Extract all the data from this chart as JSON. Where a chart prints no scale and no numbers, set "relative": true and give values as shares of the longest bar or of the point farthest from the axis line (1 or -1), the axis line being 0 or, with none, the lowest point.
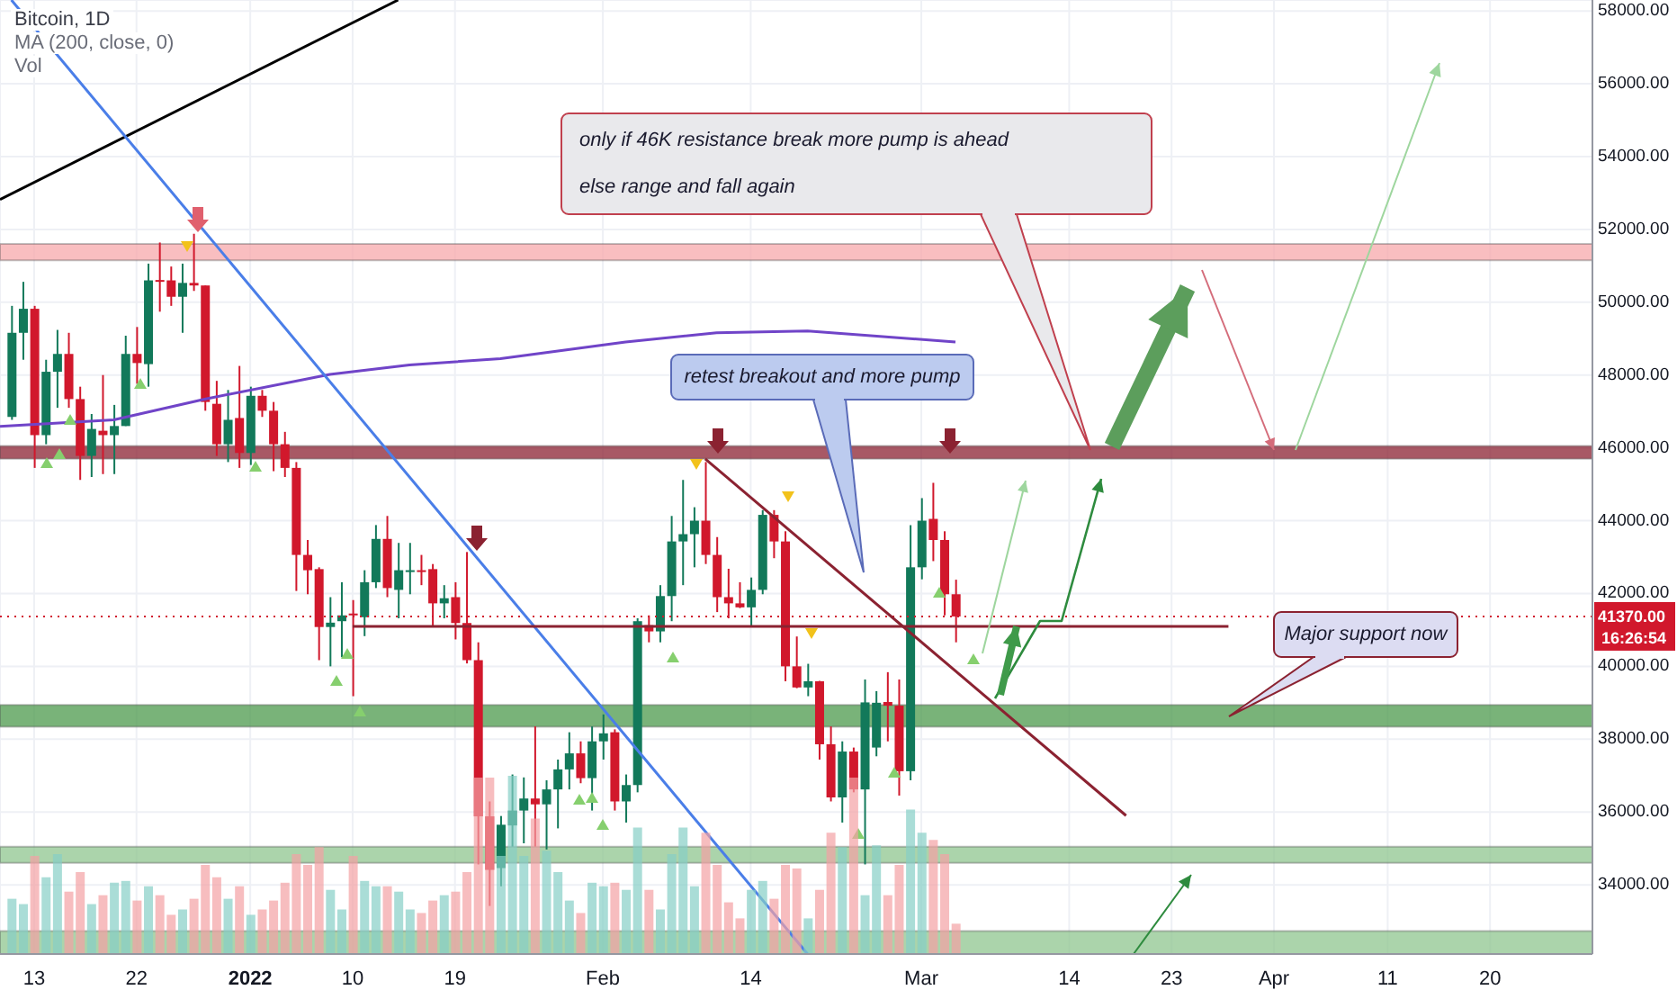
{
  "chart_data": [
    {
      "type": "candlestick",
      "title": "Bitcoin, 1D",
      "subtitle": "MA (200, close, 0)",
      "x": [
        "2021-12-11",
        "2021-12-12",
        "2021-12-13",
        "2021-12-14",
        "2021-12-15",
        "2021-12-16",
        "2021-12-17",
        "2021-12-18",
        "2021-12-19",
        "2021-12-20",
        "2021-12-21",
        "2021-12-22",
        "2021-12-23",
        "2021-12-24",
        "2021-12-25",
        "2021-12-26",
        "2021-12-27",
        "2021-12-28",
        "2021-12-29",
        "2021-12-30",
        "2021-12-31",
        "2022-01-01",
        "2022-01-02",
        "2022-01-03",
        "2022-01-04",
        "2022-01-05",
        "2022-01-06",
        "2022-01-07",
        "2022-01-08",
        "2022-01-09",
        "2022-01-10",
        "2022-01-11",
        "2022-01-12",
        "2022-01-13",
        "2022-01-14",
        "2022-01-15",
        "2022-01-16",
        "2022-01-17",
        "2022-01-18",
        "2022-01-19",
        "2022-01-20",
        "2022-01-21",
        "2022-01-22",
        "2022-01-23",
        "2022-01-24",
        "2022-01-25",
        "2022-01-26",
        "2022-01-27",
        "2022-01-28",
        "2022-01-29",
        "2022-01-30",
        "2022-01-31",
        "2022-02-01",
        "2022-02-02",
        "2022-02-03",
        "2022-02-04",
        "2022-02-05",
        "2022-02-06",
        "2022-02-07",
        "2022-02-08",
        "2022-02-09",
        "2022-02-10",
        "2022-02-11",
        "2022-02-12",
        "2022-02-13",
        "2022-02-14",
        "2022-02-15",
        "2022-02-16",
        "2022-02-17",
        "2022-02-18",
        "2022-02-19",
        "2022-02-20",
        "2022-02-21",
        "2022-02-22",
        "2022-02-23",
        "2022-02-24",
        "2022-02-25",
        "2022-02-26",
        "2022-02-27",
        "2022-02-28",
        "2022-03-01",
        "2022-03-02",
        "2022-03-03",
        "2022-03-04"
      ],
      "ohlc": [
        [
          46850,
          49900,
          46770,
          49160
        ],
        [
          49160,
          50560,
          48420,
          49820
        ],
        [
          49820,
          49900,
          45450,
          46350
        ],
        [
          46350,
          48420,
          46100,
          48090
        ],
        [
          48090,
          49240,
          47100,
          48580
        ],
        [
          48580,
          49160,
          47100,
          47340
        ],
        [
          47340,
          47680,
          45120,
          45780
        ],
        [
          45780,
          46930,
          45200,
          46520
        ],
        [
          46470,
          48000,
          45280,
          46350
        ],
        [
          46350,
          47180,
          45280,
          46600
        ],
        [
          46600,
          49080,
          46600,
          48580
        ],
        [
          48580,
          49320,
          47760,
          48330
        ],
        [
          48300,
          51060,
          47680,
          50600
        ],
        [
          50610,
          51640,
          49740,
          50560
        ],
        [
          50600,
          50980,
          49900,
          50150
        ],
        [
          50150,
          51060,
          49160,
          50530
        ],
        [
          50530,
          51880,
          50310,
          50460
        ],
        [
          50460,
          50460,
          47020,
          47260
        ],
        [
          47210,
          47840,
          45780,
          46100
        ],
        [
          46100,
          47590,
          45610,
          46770
        ],
        [
          46820,
          48250,
          45450,
          45860
        ],
        [
          45860,
          47680,
          45530,
          47430
        ],
        [
          47430,
          47590,
          46850,
          47020
        ],
        [
          47020,
          47260,
          45360,
          46100
        ],
        [
          46100,
          46440,
          45200,
          45450
        ],
        [
          45450,
          45610,
          42070,
          43060
        ],
        [
          43060,
          43470,
          41980,
          42640
        ],
        [
          42670,
          42720,
          40170,
          41080
        ],
        [
          41080,
          41900,
          40000,
          41200
        ],
        [
          41240,
          42310,
          40250,
          41400
        ],
        [
          41450,
          41820,
          39180,
          41420
        ],
        [
          41350,
          42640,
          40830,
          42310
        ],
        [
          42310,
          43880,
          42150,
          43500
        ],
        [
          43500,
          44130,
          41900,
          42150
        ],
        [
          42100,
          43390,
          41320,
          42640
        ],
        [
          42610,
          43390,
          41980,
          42640
        ],
        [
          42640,
          43060,
          42230,
          42610
        ],
        [
          42670,
          42810,
          41080,
          41730
        ],
        [
          41730,
          42230,
          41320,
          41870
        ],
        [
          41900,
          42310,
          40740,
          41190
        ],
        [
          41190,
          43140,
          40080,
          40170
        ],
        [
          40170,
          40660,
          34560,
          35880
        ],
        [
          35880,
          36290,
          33420,
          34410
        ],
        [
          34460,
          35890,
          33960,
          35650
        ],
        [
          35630,
          37030,
          35050,
          36040
        ],
        [
          36040,
          36950,
          35140,
          36370
        ],
        [
          36370,
          38350,
          35050,
          36210
        ],
        [
          36210,
          36870,
          34970,
          36620
        ],
        [
          36620,
          37440,
          35550,
          37170
        ],
        [
          37170,
          38190,
          36620,
          37610
        ],
        [
          37610,
          37940,
          36790,
          36930
        ],
        [
          36930,
          38350,
          36040,
          37940
        ],
        [
          37940,
          38680,
          37440,
          38160
        ],
        [
          38190,
          38270,
          36040,
          36290
        ],
        [
          36290,
          37030,
          35710,
          36740
        ],
        [
          36740,
          41320,
          36540,
          41240
        ],
        [
          41130,
          41400,
          40660,
          40960
        ],
        [
          40960,
          42230,
          40660,
          41930
        ],
        [
          41930,
          44130,
          41240,
          43430
        ],
        [
          43430,
          45120,
          42230,
          43630
        ],
        [
          43630,
          44370,
          42720,
          44000
        ],
        [
          44000,
          45610,
          42810,
          43060
        ],
        [
          43060,
          43550,
          41490,
          41900
        ],
        [
          41900,
          42680,
          41320,
          41730
        ],
        [
          41730,
          42310,
          41600,
          41620
        ],
        [
          41620,
          42440,
          41080,
          42100
        ],
        [
          42100,
          44290,
          41980,
          44160
        ],
        [
          44160,
          44290,
          42970,
          43430
        ],
        [
          43430,
          43710,
          39590,
          40000
        ],
        [
          40000,
          40820,
          39400,
          39420
        ],
        [
          39420,
          40070,
          39180,
          39590
        ],
        [
          39590,
          39600,
          37440,
          37860
        ],
        [
          37860,
          38350,
          36290,
          36400
        ],
        [
          36400,
          37940,
          35710,
          37660
        ],
        [
          37660,
          37770,
          36540,
          36620
        ],
        [
          36620,
          39640,
          34560,
          39010
        ],
        [
          37770,
          39320,
          37530,
          39000
        ],
        [
          39020,
          39840,
          37940,
          38920
        ],
        [
          38920,
          39640,
          36450,
          37120
        ],
        [
          37120,
          43880,
          36870,
          42720
        ],
        [
          42720,
          44620,
          42390,
          44000
        ],
        [
          44050,
          45040,
          42890,
          43470
        ],
        [
          43470,
          43710,
          41400,
          41980
        ],
        [
          41980,
          42380,
          40660,
          41370
        ]
      ],
      "xlim": [
        "2021-12-10",
        "2022-04-29"
      ],
      "xticks": [
        {
          "value": "2021-12-13",
          "label": "13"
        },
        {
          "value": "2021-12-22",
          "label": "22"
        },
        {
          "value": "2022-01-01",
          "label": "2022"
        },
        {
          "value": "2022-01-10",
          "label": "10"
        },
        {
          "value": "2022-01-19",
          "label": "19"
        },
        {
          "value": "2022-02-01",
          "label": "Feb"
        },
        {
          "value": "2022-02-14",
          "label": "14"
        },
        {
          "value": "2022-03-01",
          "label": "Mar"
        },
        {
          "value": "2022-03-14",
          "label": "14"
        },
        {
          "value": "2022-03-23",
          "label": "23"
        },
        {
          "value": "2022-04-01",
          "label": "Apr"
        },
        {
          "value": "2022-04-11",
          "label": "11"
        },
        {
          "value": "2022-04-20",
          "label": "20"
        }
      ],
      "ylim": [
        32100,
        58300
      ],
      "yticks": [
        {
          "value": 34000,
          "label": "34000.00"
        },
        {
          "value": 36000,
          "label": "36000.00"
        },
        {
          "value": 38000,
          "label": "38000.00"
        },
        {
          "value": 40000,
          "label": "40000.00"
        },
        {
          "value": 42000,
          "label": "42000.00"
        },
        {
          "value": 44000,
          "label": "44000.00"
        },
        {
          "value": 46000,
          "label": "46000.00"
        },
        {
          "value": 48000,
          "label": "48000.00"
        },
        {
          "value": 50000,
          "label": "50000.00"
        },
        {
          "value": 52000,
          "label": "52000.00"
        },
        {
          "value": 54000,
          "label": "54000.00"
        },
        {
          "value": 56000,
          "label": "56000.00"
        },
        {
          "value": 58000,
          "label": "58000.00"
        }
      ],
      "grid": true,
      "series": [
        {
          "type": "line",
          "color": "#7044c8",
          "x": [
            "2021-12-10",
            "2021-12-20",
            "2021-12-28",
            "2022-01-08",
            "2022-01-15",
            "2022-01-23",
            "2022-02-03",
            "2022-02-11",
            "2022-02-19",
            "2022-03-04"
          ],
          "values": [
            46590,
            46770,
            47340,
            48020,
            48280,
            48450,
            48910,
            49160,
            49210,
            48910
          ]
        },
        {
          "type": "line",
          "color": "#000000",
          "x": [
            "2021-12-10",
            "2022-01-14"
          ],
          "values": [
            52820,
            58300
          ]
        },
        {
          "type": "line",
          "color": "#4a7ee8",
          "x": [
            "2021-12-11",
            "2022-02-19"
          ],
          "values": [
            58300,
            32100
          ]
        },
        {
          "type": "line",
          "color": "#8b2231",
          "x": [
            "2022-02-10",
            "2022-03-19"
          ],
          "values": [
            45700,
            35900
          ]
        },
        {
          "type": "line",
          "color": "#8b2231",
          "x": [
            "2022-01-10",
            "2022-03-28"
          ],
          "values": [
            41100,
            41100
          ]
        }
      ],
      "bands": [
        {
          "axis": "y",
          "from": 51150,
          "to": 51600,
          "color": "#f7a8ab"
        },
        {
          "axis": "y",
          "from": 45700,
          "to": 46050,
          "color": "#8b2231"
        },
        {
          "axis": "y",
          "from": 38340,
          "to": 38940,
          "color": "#4c9a4c"
        },
        {
          "axis": "y",
          "from": 34600,
          "to": 35050,
          "color": "#8fc58f"
        },
        {
          "axis": "y",
          "from": 32100,
          "to": 32730,
          "color": "#8fc58f"
        }
      ],
      "ref_lines": [
        {
          "axis": "y",
          "value": 41370,
          "label": "41370.00",
          "color": "#d1182c",
          "line_style": "dotted"
        }
      ],
      "annotations": [
        "only if 46K resistance break more pump is ahead\nelse range and fall again",
        "retest breakout and more pump",
        "Major support now",
        "16:26:54"
      ]
    },
    {
      "type": "bar",
      "title": "Vol",
      "relative": true,
      "xlim": [
        "2021-12-10",
        "2022-04-29"
      ],
      "x": [
        "2021-12-11",
        "2021-12-12",
        "2021-12-13",
        "2021-12-14",
        "2021-12-15",
        "2021-12-16",
        "2021-12-17",
        "2021-12-18",
        "2021-12-19",
        "2021-12-20",
        "2021-12-21",
        "2021-12-22",
        "2021-12-23",
        "2021-12-24",
        "2021-12-25",
        "2021-12-26",
        "2021-12-27",
        "2021-12-28",
        "2021-12-29",
        "2021-12-30",
        "2021-12-31",
        "2022-01-01",
        "2022-01-02",
        "2022-01-03",
        "2022-01-04",
        "2022-01-05",
        "2022-01-06",
        "2022-01-07",
        "2022-01-08",
        "2022-01-09",
        "2022-01-10",
        "2022-01-11",
        "2022-01-12",
        "2022-01-13",
        "2022-01-14",
        "2022-01-15",
        "2022-01-16",
        "2022-01-17",
        "2022-01-18",
        "2022-01-19",
        "2022-01-20",
        "2022-01-21",
        "2022-01-22",
        "2022-01-23",
        "2022-01-24",
        "2022-01-25",
        "2022-01-26",
        "2022-01-27",
        "2022-01-28",
        "2022-01-29",
        "2022-01-30",
        "2022-01-31",
        "2022-02-01",
        "2022-02-02",
        "2022-02-03",
        "2022-02-04",
        "2022-02-05",
        "2022-02-06",
        "2022-02-07",
        "2022-02-08",
        "2022-02-09",
        "2022-02-10",
        "2022-02-11",
        "2022-02-12",
        "2022-02-13",
        "2022-02-14",
        "2022-02-15",
        "2022-02-16",
        "2022-02-17",
        "2022-02-18",
        "2022-02-19",
        "2022-02-20",
        "2022-02-21",
        "2022-02-22",
        "2022-02-23",
        "2022-02-24",
        "2022-02-25",
        "2022-02-26",
        "2022-02-27",
        "2022-02-28",
        "2022-03-01",
        "2022-03-02",
        "2022-03-03",
        "2022-03-04"
      ],
      "values": [
        0.31,
        0.28,
        0.55,
        0.43,
        0.56,
        0.35,
        0.46,
        0.28,
        0.33,
        0.4,
        0.41,
        0.3,
        0.38,
        0.33,
        0.22,
        0.25,
        0.31,
        0.5,
        0.43,
        0.31,
        0.38,
        0.22,
        0.25,
        0.3,
        0.4,
        0.56,
        0.5,
        0.6,
        0.36,
        0.25,
        0.55,
        0.41,
        0.38,
        0.38,
        0.35,
        0.25,
        0.23,
        0.3,
        0.33,
        0.35,
        0.46,
        0.99,
        0.99,
        0.55,
        1,
        0.55,
        0.76,
        0.58,
        0.46,
        0.3,
        0.23,
        0.4,
        0.38,
        0.4,
        0.36,
        0.71,
        0.36,
        0.25,
        0.56,
        0.71,
        0.38,
        0.68,
        0.5,
        0.29,
        0.2,
        0.36,
        0.41,
        0.31,
        0.5,
        0.48,
        0.2,
        0.36,
        0.68,
        0.6,
        0.99,
        0.33,
        0.61,
        0.33,
        0.5,
        0.81,
        0.68,
        0.64,
        0.56,
        0.17
      ],
      "colors": [
        "#86cfc6",
        "#86cfc6",
        "#f3a1a4",
        "#86cfc6",
        "#86cfc6",
        "#f3a1a4",
        "#f3a1a4",
        "#86cfc6",
        "#f3a1a4",
        "#86cfc6",
        "#86cfc6",
        "#f3a1a4",
        "#86cfc6",
        "#f3a1a4",
        "#f3a1a4",
        "#86cfc6",
        "#f3a1a4",
        "#f3a1a4",
        "#f3a1a4",
        "#86cfc6",
        "#f3a1a4",
        "#86cfc6",
        "#f3a1a4",
        "#f3a1a4",
        "#f3a1a4",
        "#f3a1a4",
        "#f3a1a4",
        "#f3a1a4",
        "#86cfc6",
        "#86cfc6",
        "#f3a1a4",
        "#86cfc6",
        "#86cfc6",
        "#f3a1a4",
        "#86cfc6",
        "#86cfc6",
        "#f3a1a4",
        "#f3a1a4",
        "#86cfc6",
        "#f3a1a4",
        "#f3a1a4",
        "#f3a1a4",
        "#f3a1a4",
        "#86cfc6",
        "#86cfc6",
        "#86cfc6",
        "#f3a1a4",
        "#86cfc6",
        "#86cfc6",
        "#86cfc6",
        "#f3a1a4",
        "#86cfc6",
        "#86cfc6",
        "#f3a1a4",
        "#86cfc6",
        "#86cfc6",
        "#f3a1a4",
        "#86cfc6",
        "#86cfc6",
        "#86cfc6",
        "#86cfc6",
        "#f3a1a4",
        "#f3a1a4",
        "#f3a1a4",
        "#f3a1a4",
        "#86cfc6",
        "#86cfc6",
        "#f3a1a4",
        "#f3a1a4",
        "#f3a1a4",
        "#86cfc6",
        "#f3a1a4",
        "#f3a1a4",
        "#86cfc6",
        "#f3a1a4",
        "#86cfc6",
        "#86cfc6",
        "#f3a1a4",
        "#f3a1a4",
        "#86cfc6",
        "#86cfc6",
        "#f3a1a4",
        "#f3a1a4",
        "#f3a1a4"
      ]
    }
  ]
}
